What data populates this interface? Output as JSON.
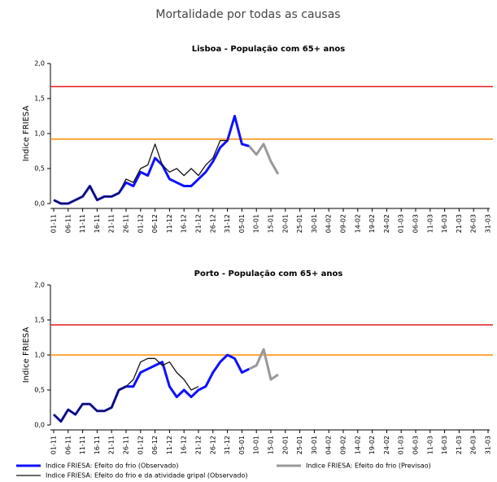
{
  "title": "Mortalidade por todas as causas",
  "chart_data": [
    {
      "type": "line",
      "title": "Lisboa - População com 65+ anos",
      "ylabel": "Indice FRIESA",
      "categories": [
        "01-11",
        null,
        "06-11",
        null,
        "11-11",
        null,
        "16-11",
        null,
        "21-11",
        null,
        "26-11",
        null,
        "01-12",
        null,
        "06-12",
        null,
        "11-12",
        null,
        "16-12",
        null,
        "21-12",
        null,
        "26-12",
        null,
        "31-12",
        null,
        "05-01",
        null,
        "10-01",
        null,
        "15-01",
        null,
        "20-01",
        null,
        "25-01",
        null,
        "30-01",
        null,
        "04-02",
        null,
        "09-02",
        null,
        "14-02",
        null,
        "19-02",
        null,
        "24-02",
        null,
        "01-03",
        null,
        "06-03",
        null,
        "11-03",
        null,
        "16-03",
        null,
        "21-03",
        null,
        "26-03",
        null,
        "31-03"
      ],
      "ylim": [
        0,
        2
      ],
      "yticks": [
        {
          "value": 0,
          "label": "0,0"
        },
        {
          "value": 0.5,
          "label": "0,5"
        },
        {
          "value": 1,
          "label": "1,0"
        },
        {
          "value": 1.5,
          "label": "1,5"
        },
        {
          "value": 2,
          "label": "2,0"
        }
      ],
      "thresholds": [
        {
          "value": 1.67,
          "color": "#e41a1c"
        },
        {
          "value": 0.92,
          "color": "#ff8c00"
        }
      ],
      "series": [
        {
          "name": "Indice FRIESA: Efeito do frio (Observado)",
          "color": "#1010ff",
          "width": 3,
          "values": [
            0.05,
            0,
            0,
            0.05,
            0.1,
            0.25,
            0.05,
            0.1,
            0.1,
            0.15,
            0.3,
            0.25,
            0.45,
            0.4,
            0.65,
            0.55,
            0.35,
            0.3,
            0.25,
            0.25,
            0.35,
            0.45,
            0.6,
            0.8,
            0.9,
            1.25,
            0.85,
            0.82,
            null,
            null,
            null,
            null,
            null,
            null,
            null,
            null,
            null,
            null,
            null,
            null,
            null,
            null,
            null,
            null,
            null,
            null,
            null,
            null,
            null,
            null,
            null,
            null,
            null,
            null,
            null,
            null,
            null,
            null,
            null,
            null,
            null
          ]
        },
        {
          "name": "Indice FRIESA: Efeito do frio e da atividade gripal (Observado)",
          "color": "#111111",
          "width": 1.3,
          "values": [
            0.05,
            0,
            0,
            0.05,
            0.1,
            0.25,
            0.05,
            0.1,
            0.1,
            0.15,
            0.35,
            0.3,
            0.5,
            0.55,
            0.85,
            0.55,
            0.45,
            0.5,
            0.4,
            0.5,
            0.4,
            0.55,
            0.65,
            0.9,
            0.9,
            null,
            null,
            null,
            null,
            null,
            null,
            null,
            null,
            null,
            null,
            null,
            null,
            null,
            null,
            null,
            null,
            null,
            null,
            null,
            null,
            null,
            null,
            null,
            null,
            null,
            null,
            null,
            null,
            null,
            null,
            null,
            null,
            null,
            null,
            null,
            null
          ]
        },
        {
          "name": "Indice FRIESA: Efeito do frio (Previsao)",
          "color": "#999999",
          "width": 3,
          "values": [
            null,
            null,
            null,
            null,
            null,
            null,
            null,
            null,
            null,
            null,
            null,
            null,
            null,
            null,
            null,
            null,
            null,
            null,
            null,
            null,
            null,
            null,
            null,
            null,
            null,
            null,
            null,
            0.82,
            0.7,
            0.85,
            0.6,
            0.42,
            null,
            null,
            null,
            null,
            null,
            null,
            null,
            null,
            null,
            null,
            null,
            null,
            null,
            null,
            null,
            null,
            null,
            null,
            null,
            null,
            null,
            null,
            null,
            null,
            null,
            null,
            null,
            null,
            null
          ]
        }
      ]
    },
    {
      "type": "line",
      "title": "Porto - População com 65+ anos",
      "ylabel": "Indice FRIESA",
      "categories": [
        "01-11",
        null,
        "06-11",
        null,
        "11-11",
        null,
        "16-11",
        null,
        "21-11",
        null,
        "26-11",
        null,
        "01-12",
        null,
        "06-12",
        null,
        "11-12",
        null,
        "16-12",
        null,
        "21-12",
        null,
        "26-12",
        null,
        "31-12",
        null,
        "05-01",
        null,
        "10-01",
        null,
        "15-01",
        null,
        "20-01",
        null,
        "25-01",
        null,
        "30-01",
        null,
        "04-02",
        null,
        "09-02",
        null,
        "14-02",
        null,
        "19-02",
        null,
        "24-02",
        null,
        "01-03",
        null,
        "06-03",
        null,
        "11-03",
        null,
        "16-03",
        null,
        "21-03",
        null,
        "26-03",
        null,
        "31-03"
      ],
      "ylim": [
        0,
        2
      ],
      "yticks": [
        {
          "value": 0,
          "label": "0,0"
        },
        {
          "value": 0.5,
          "label": "0,5"
        },
        {
          "value": 1,
          "label": "1,0"
        },
        {
          "value": 1.5,
          "label": "1,5"
        },
        {
          "value": 2,
          "label": "2,0"
        }
      ],
      "thresholds": [
        {
          "value": 1.43,
          "color": "#e41a1c"
        },
        {
          "value": 1.0,
          "color": "#ff8c00"
        }
      ],
      "series": [
        {
          "name": "Indice FRIESA: Efeito do frio (Observado)",
          "color": "#1010ff",
          "width": 3,
          "values": [
            0.15,
            0.05,
            0.22,
            0.15,
            0.3,
            0.3,
            0.2,
            0.2,
            0.25,
            0.5,
            0.55,
            0.55,
            0.75,
            0.8,
            0.85,
            0.9,
            0.55,
            0.4,
            0.5,
            0.4,
            0.5,
            0.55,
            0.75,
            0.9,
            1.0,
            0.95,
            0.75,
            0.8,
            null,
            null,
            null,
            null,
            null,
            null,
            null,
            null,
            null,
            null,
            null,
            null,
            null,
            null,
            null,
            null,
            null,
            null,
            null,
            null,
            null,
            null,
            null,
            null,
            null,
            null,
            null,
            null,
            null,
            null,
            null,
            null,
            null
          ]
        },
        {
          "name": "Indice FRIESA: Efeito do frio e da atividade gripal (Observado)",
          "color": "#111111",
          "width": 1.3,
          "values": [
            0.15,
            0.05,
            0.22,
            0.15,
            0.3,
            0.3,
            0.2,
            0.2,
            0.25,
            0.5,
            0.55,
            0.65,
            0.9,
            0.95,
            0.95,
            0.85,
            0.9,
            0.75,
            0.65,
            0.5,
            0.55,
            null,
            null,
            null,
            null,
            null,
            null,
            null,
            null,
            null,
            null,
            null,
            null,
            null,
            null,
            null,
            null,
            null,
            null,
            null,
            null,
            null,
            null,
            null,
            null,
            null,
            null,
            null,
            null,
            null,
            null,
            null,
            null,
            null,
            null,
            null,
            null,
            null,
            null,
            null,
            null
          ]
        },
        {
          "name": "Indice FRIESA: Efeito do frio (Previsao)",
          "color": "#999999",
          "width": 3,
          "values": [
            null,
            null,
            null,
            null,
            null,
            null,
            null,
            null,
            null,
            null,
            null,
            null,
            null,
            null,
            null,
            null,
            null,
            null,
            null,
            null,
            null,
            null,
            null,
            null,
            null,
            null,
            null,
            0.8,
            0.85,
            1.08,
            0.65,
            0.72,
            null,
            null,
            null,
            null,
            null,
            null,
            null,
            null,
            null,
            null,
            null,
            null,
            null,
            null,
            null,
            null,
            null,
            null,
            null,
            null,
            null,
            null,
            null,
            null,
            null,
            null,
            null,
            null,
            null
          ]
        }
      ]
    }
  ]
}
